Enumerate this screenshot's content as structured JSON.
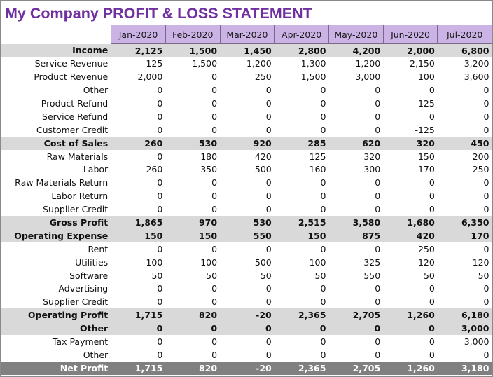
{
  "title": "My Company PROFIT & LOSS STATEMENT",
  "months": [
    "Jan-2020",
    "Feb-2020",
    "Mar-2020",
    "Apr-2020",
    "May-2020",
    "Jun-2020",
    "Jul-2020"
  ],
  "rows": [
    {
      "label": "Income",
      "type": "header",
      "values": [
        "2,125",
        "1,500",
        "1,450",
        "2,800",
        "4,200",
        "2,000",
        "6,800"
      ]
    },
    {
      "label": "Service Revenue",
      "type": "item",
      "values": [
        "125",
        "1,500",
        "1,200",
        "1,300",
        "1,200",
        "2,150",
        "3,200"
      ]
    },
    {
      "label": "Product Revenue",
      "type": "item",
      "values": [
        "2,000",
        "0",
        "250",
        "1,500",
        "3,000",
        "100",
        "3,600"
      ]
    },
    {
      "label": "Other",
      "type": "item",
      "values": [
        "0",
        "0",
        "0",
        "0",
        "0",
        "0",
        "0"
      ]
    },
    {
      "label": "Product Refund",
      "type": "item",
      "values": [
        "0",
        "0",
        "0",
        "0",
        "0",
        "-125",
        "0"
      ]
    },
    {
      "label": "Service Refund",
      "type": "item",
      "values": [
        "0",
        "0",
        "0",
        "0",
        "0",
        "0",
        "0"
      ]
    },
    {
      "label": "Customer Credit",
      "type": "item",
      "values": [
        "0",
        "0",
        "0",
        "0",
        "0",
        "-125",
        "0"
      ]
    },
    {
      "label": "Cost of Sales",
      "type": "header",
      "values": [
        "260",
        "530",
        "920",
        "285",
        "620",
        "320",
        "450"
      ]
    },
    {
      "label": "Raw Materials",
      "type": "item",
      "values": [
        "0",
        "180",
        "420",
        "125",
        "320",
        "150",
        "200"
      ]
    },
    {
      "label": "Labor",
      "type": "item",
      "values": [
        "260",
        "350",
        "500",
        "160",
        "300",
        "170",
        "250"
      ]
    },
    {
      "label": "Raw Materials Return",
      "type": "item",
      "values": [
        "0",
        "0",
        "0",
        "0",
        "0",
        "0",
        "0"
      ]
    },
    {
      "label": "Labor Return",
      "type": "item",
      "values": [
        "0",
        "0",
        "0",
        "0",
        "0",
        "0",
        "0"
      ]
    },
    {
      "label": "Supplier Credit",
      "type": "item",
      "values": [
        "0",
        "0",
        "0",
        "0",
        "0",
        "0",
        "0"
      ]
    },
    {
      "label": "Gross Profit",
      "type": "header",
      "values": [
        "1,865",
        "970",
        "530",
        "2,515",
        "3,580",
        "1,680",
        "6,350"
      ]
    },
    {
      "label": "Operating Expense",
      "type": "header",
      "values": [
        "150",
        "150",
        "550",
        "150",
        "875",
        "420",
        "170"
      ]
    },
    {
      "label": "Rent",
      "type": "item",
      "values": [
        "0",
        "0",
        "0",
        "0",
        "0",
        "250",
        "0"
      ]
    },
    {
      "label": "Utilities",
      "type": "item",
      "values": [
        "100",
        "100",
        "500",
        "100",
        "325",
        "120",
        "120"
      ]
    },
    {
      "label": "Software",
      "type": "item",
      "values": [
        "50",
        "50",
        "50",
        "50",
        "550",
        "50",
        "50"
      ]
    },
    {
      "label": "Advertising",
      "type": "item",
      "values": [
        "0",
        "0",
        "0",
        "0",
        "0",
        "0",
        "0"
      ]
    },
    {
      "label": "Supplier Credit",
      "type": "item",
      "values": [
        "0",
        "0",
        "0",
        "0",
        "0",
        "0",
        "0"
      ]
    },
    {
      "label": "Operating Profit",
      "type": "header",
      "values": [
        "1,715",
        "820",
        "-20",
        "2,365",
        "2,705",
        "1,260",
        "6,180"
      ]
    },
    {
      "label": "Other",
      "type": "header",
      "values": [
        "0",
        "0",
        "0",
        "0",
        "0",
        "0",
        "3,000"
      ]
    },
    {
      "label": "Tax Payment",
      "type": "item",
      "values": [
        "0",
        "0",
        "0",
        "0",
        "0",
        "0",
        "3,000"
      ]
    },
    {
      "label": "Other",
      "type": "item",
      "values": [
        "0",
        "0",
        "0",
        "0",
        "0",
        "0",
        "0"
      ]
    },
    {
      "label": "Net Profit",
      "type": "net",
      "values": [
        "1,715",
        "820",
        "-20",
        "2,365",
        "2,705",
        "1,260",
        "3,180"
      ]
    }
  ]
}
